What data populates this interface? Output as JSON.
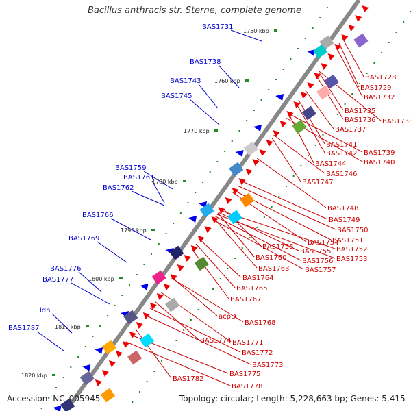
{
  "title": "Bacillus anthracis str. Sterne, complete genome",
  "footer": {
    "accession": "Accession: NC_005945",
    "topology": "Topology: circular; Length: 5,228,663 bp; Genes: 5,415"
  },
  "colors": {
    "left_label": "#0000cc",
    "right_label": "#cc0000",
    "backbone": "#888888",
    "arrow_blue": "#0000ee",
    "arrow_red": "#ee0000",
    "tick_dot": "#228b22"
  },
  "scale_ticks": [
    "1750 kbp",
    "1760 kbp",
    "1770 kbp",
    "1780 kbp",
    "1790 kbp",
    "1800 kbp",
    "1810 kbp",
    "1820 kbp"
  ],
  "left_labels": [
    "BAS1731",
    "BAS1738",
    "BAS1743",
    "BAS1745",
    "BAS1759",
    "BAS1761",
    "BAS1762",
    "BAS1766",
    "BAS1769",
    "BAS1776",
    "BAS1777",
    "ldh",
    "BAS1787"
  ],
  "right_labels": [
    "BAS1728",
    "BAS1729",
    "BAS1732",
    "BAS1735",
    "BAS1736",
    "BAS1733",
    "BAS1737",
    "BAS1741",
    "BAS1742",
    "BAS1739",
    "BAS1740",
    "BAS1744",
    "BAS1746",
    "BAS1747",
    "BAS1748",
    "BAS1749",
    "BAS1750",
    "BAS1751",
    "BAS1752",
    "BAS1753",
    "BAS1754",
    "BAS1755",
    "BAS1756",
    "BAS1757",
    "BAS1758",
    "BAS1760",
    "BAS1763",
    "BAS1764",
    "BAS1765",
    "BAS1767",
    "acpD",
    "BAS1768",
    "BAS1771",
    "BAS1774",
    "BAS1772",
    "BAS1773",
    "BAS1775",
    "BAS1778",
    "BAS1782"
  ]
}
